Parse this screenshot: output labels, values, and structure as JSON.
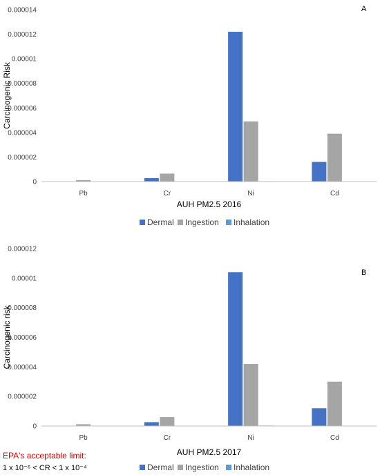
{
  "colors": {
    "Dermal": "#4472C4",
    "Ingestion": "#A5A5A5",
    "Inhalation": "#5B9BD5",
    "axis": "#BFBFBF",
    "note": "#E00000"
  },
  "legend": [
    "Dermal",
    "Ingestion",
    "Inhalation"
  ],
  "note": {
    "title": "EPA's acceptable limit:",
    "text": "1 x 10⁻⁶ < CR < 1 x 10⁻⁴"
  },
  "chart_data": [
    {
      "type": "bar",
      "panel": "A",
      "xlabel": "AUH PM2.5 2016",
      "ylabel": "Carcinogenic Risk",
      "categories": [
        "Pb",
        "Cr",
        "Ni",
        "Cd"
      ],
      "ylim": [
        0,
        1.4e-05
      ],
      "yticks": [
        "0",
        "0.000002",
        "0.000004",
        "0.000006",
        "0.000008",
        "0.00001",
        "0.000012",
        "0.000014"
      ],
      "grid": false,
      "legend_position": "bottom",
      "series": [
        {
          "name": "Dermal",
          "values": [
            1e-08,
            2.8e-07,
            1.22e-05,
            1.6e-06
          ]
        },
        {
          "name": "Ingestion",
          "values": [
            1.2e-07,
            6.5e-07,
            4.9e-06,
            3.9e-06
          ]
        },
        {
          "name": "Inhalation",
          "values": [
            5e-09,
            2e-08,
            3e-08,
            2e-08
          ]
        }
      ]
    },
    {
      "type": "bar",
      "panel": "B",
      "xlabel": "AUH PM2.5 2017",
      "ylabel": "Carcinogenic risk",
      "categories": [
        "Pb",
        "Cr",
        "Ni",
        "Cd"
      ],
      "ylim": [
        0,
        1.2e-05
      ],
      "yticks": [
        "0",
        "0.000002",
        "0.000004",
        "0.000006",
        "0.000008",
        "0.00001",
        "0.000012"
      ],
      "grid": false,
      "legend_position": "bottom",
      "series": [
        {
          "name": "Dermal",
          "values": [
            2e-08,
            2.6e-07,
            1.04e-05,
            1.2e-06
          ]
        },
        {
          "name": "Ingestion",
          "values": [
            1.2e-07,
            6e-07,
            4.2e-06,
            3e-06
          ]
        },
        {
          "name": "Inhalation",
          "values": [
            2e-08,
            2e-08,
            3e-08,
            2e-08
          ]
        }
      ]
    }
  ]
}
